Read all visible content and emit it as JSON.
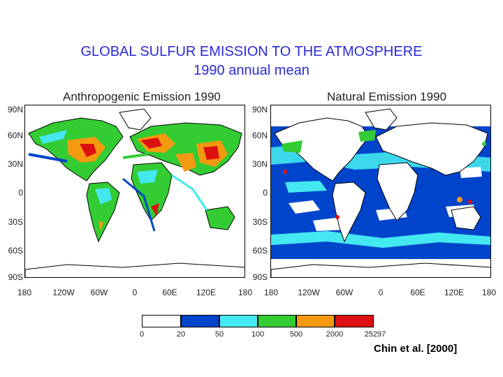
{
  "title": {
    "line1": "GLOBAL SULFUR EMISSION TO THE ATMOSPHERE",
    "line2": "1990 annual mean"
  },
  "panels": [
    {
      "title": "Anthropogenic Emission 1990"
    },
    {
      "title": "Natural Emission 1990"
    }
  ],
  "axes": {
    "lat_labels": [
      "90N",
      "60N",
      "30N",
      "0",
      "30S",
      "60S",
      "90S"
    ],
    "lon_labels": [
      "180",
      "120W",
      "60W",
      "0",
      "60E",
      "120E",
      "180"
    ]
  },
  "colorbar": {
    "ticks": [
      "0",
      "20",
      "50",
      "100",
      "500",
      "2000",
      "25297"
    ],
    "colors": [
      "#ffffff",
      "#0044cc",
      "#44e8f0",
      "#33cc33",
      "#f59a10",
      "#dd1111"
    ]
  },
  "credit": "Chin et al. [2000]"
}
